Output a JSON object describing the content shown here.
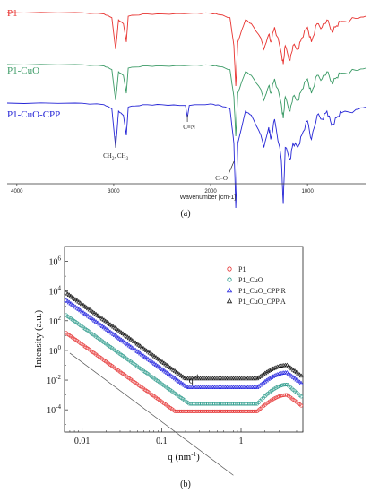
{
  "figure": {
    "panel_a_label": "(a)",
    "panel_b_label": "(b)"
  },
  "chart_data": [
    {
      "type": "line",
      "panel": "a",
      "title": "",
      "xlabel": "Wavenumber [cm-1]",
      "ylabel": "",
      "xlim": [
        4100,
        400
      ],
      "x_ticks": [
        4000,
        3000,
        2000,
        1000
      ],
      "x_tick_labels": [
        "4000",
        "3000",
        "2000",
        "1000"
      ],
      "grid": false,
      "series": [
        {
          "name": "P1",
          "color": "#e8322f",
          "points": [
            [
              4100,
              1.0
            ],
            [
              3400,
              1.0
            ],
            [
              3100,
              0.98
            ],
            [
              3020,
              0.93
            ],
            [
              2980,
              0.5
            ],
            [
              2950,
              0.9
            ],
            [
              2900,
              0.85
            ],
            [
              2870,
              0.6
            ],
            [
              2850,
              0.95
            ],
            [
              2700,
              0.98
            ],
            [
              2500,
              0.98
            ],
            [
              2200,
              0.99
            ],
            [
              2000,
              0.99
            ],
            [
              1900,
              0.97
            ],
            [
              1800,
              0.93
            ],
            [
              1760,
              0.55
            ],
            [
              1740,
              0.0
            ],
            [
              1720,
              0.6
            ],
            [
              1640,
              0.9
            ],
            [
              1580,
              0.85
            ],
            [
              1480,
              0.65
            ],
            [
              1450,
              0.5
            ],
            [
              1400,
              0.7
            ],
            [
              1380,
              0.6
            ],
            [
              1340,
              0.8
            ],
            [
              1270,
              0.45
            ],
            [
              1250,
              0.3
            ],
            [
              1230,
              0.55
            ],
            [
              1180,
              0.35
            ],
            [
              1150,
              0.55
            ],
            [
              1100,
              0.5
            ],
            [
              1060,
              0.65
            ],
            [
              1000,
              0.8
            ],
            [
              960,
              0.6
            ],
            [
              900,
              0.85
            ],
            [
              850,
              0.8
            ],
            [
              800,
              0.9
            ],
            [
              750,
              0.75
            ],
            [
              700,
              0.82
            ],
            [
              650,
              0.88
            ],
            [
              500,
              0.92
            ],
            [
              400,
              0.95
            ]
          ]
        },
        {
          "name": "P1-CuO",
          "color": "#3a9a65",
          "points": [
            [
              4100,
              1.0
            ],
            [
              3400,
              1.0
            ],
            [
              3100,
              0.98
            ],
            [
              3020,
              0.93
            ],
            [
              2980,
              0.5
            ],
            [
              2950,
              0.9
            ],
            [
              2900,
              0.85
            ],
            [
              2870,
              0.6
            ],
            [
              2850,
              0.95
            ],
            [
              2700,
              0.98
            ],
            [
              2500,
              0.98
            ],
            [
              2200,
              0.99
            ],
            [
              2000,
              0.99
            ],
            [
              1900,
              0.97
            ],
            [
              1800,
              0.93
            ],
            [
              1760,
              0.55
            ],
            [
              1740,
              0.0
            ],
            [
              1720,
              0.6
            ],
            [
              1640,
              0.9
            ],
            [
              1580,
              0.85
            ],
            [
              1480,
              0.65
            ],
            [
              1450,
              0.5
            ],
            [
              1400,
              0.7
            ],
            [
              1380,
              0.6
            ],
            [
              1340,
              0.8
            ],
            [
              1270,
              0.45
            ],
            [
              1250,
              0.25
            ],
            [
              1230,
              0.55
            ],
            [
              1180,
              0.35
            ],
            [
              1150,
              0.55
            ],
            [
              1100,
              0.5
            ],
            [
              1060,
              0.65
            ],
            [
              1000,
              0.8
            ],
            [
              960,
              0.6
            ],
            [
              900,
              0.85
            ],
            [
              850,
              0.8
            ],
            [
              800,
              0.9
            ],
            [
              750,
              0.75
            ],
            [
              700,
              0.82
            ],
            [
              650,
              0.88
            ],
            [
              500,
              0.92
            ],
            [
              400,
              0.95
            ]
          ]
        },
        {
          "name": "P1-CuO-CPP",
          "color": "#2424d6",
          "points": [
            [
              4100,
              1.0
            ],
            [
              3400,
              1.0
            ],
            [
              3100,
              0.98
            ],
            [
              3020,
              0.93
            ],
            [
              2980,
              0.45
            ],
            [
              2950,
              0.9
            ],
            [
              2900,
              0.85
            ],
            [
              2870,
              0.6
            ],
            [
              2850,
              0.95
            ],
            [
              2700,
              0.98
            ],
            [
              2500,
              0.98
            ],
            [
              2260,
              0.97
            ],
            [
              2240,
              0.82
            ],
            [
              2220,
              0.97
            ],
            [
              2000,
              0.99
            ],
            [
              1900,
              0.97
            ],
            [
              1800,
              0.93
            ],
            [
              1760,
              0.5
            ],
            [
              1740,
              -0.3
            ],
            [
              1720,
              0.5
            ],
            [
              1640,
              0.9
            ],
            [
              1580,
              0.85
            ],
            [
              1480,
              0.6
            ],
            [
              1450,
              0.45
            ],
            [
              1400,
              0.7
            ],
            [
              1380,
              0.55
            ],
            [
              1340,
              0.8
            ],
            [
              1270,
              0.3
            ],
            [
              1250,
              -0.25
            ],
            [
              1230,
              0.45
            ],
            [
              1180,
              0.3
            ],
            [
              1150,
              0.5
            ],
            [
              1100,
              0.45
            ],
            [
              1060,
              0.6
            ],
            [
              1000,
              0.78
            ],
            [
              960,
              0.55
            ],
            [
              900,
              0.85
            ],
            [
              850,
              0.8
            ],
            [
              800,
              0.9
            ],
            [
              750,
              0.72
            ],
            [
              700,
              0.82
            ],
            [
              650,
              0.88
            ],
            [
              500,
              0.92
            ],
            [
              400,
              0.95
            ]
          ]
        }
      ],
      "annotations": [
        {
          "text": "CH",
          "sub1": "2",
          "text2": ", CH",
          "sub2": "3",
          "x": 2980
        },
        {
          "text": "C≡N",
          "x": 2240
        },
        {
          "text": "C=O",
          "x": 1740
        }
      ]
    },
    {
      "type": "scatter",
      "panel": "b",
      "title": "",
      "xlabel": "q (nm",
      "xlabel_sup": "-1",
      "xlabel_end": ")",
      "ylabel": "Intensity (a.u.)",
      "xscale": "log",
      "yscale": "log",
      "xlim": [
        0.006,
        6
      ],
      "ylim_exp": [
        -5.5,
        7
      ],
      "x_ticks": [
        0.01,
        0.1,
        1
      ],
      "x_tick_labels": [
        "0.01",
        "0.1",
        "1"
      ],
      "y_tick_exponents": [
        -4,
        -2,
        0,
        2,
        4,
        6
      ],
      "y_tick_base": "10",
      "grid": false,
      "legend_position": "top-right",
      "series": [
        {
          "name": "P1",
          "color": "#e53030",
          "marker": "circle",
          "a": 0.4,
          "minq": 1.6,
          "minlog": -4.1,
          "peakq": 3.8,
          "peaklog": -3.0,
          "endlog": -3.8
        },
        {
          "name": "P1_CuO",
          "color": "#2a9a8a",
          "marker": "circle",
          "a": 1.6,
          "minq": 1.6,
          "minlog": -3.6,
          "peakq": 3.8,
          "peaklog": -2.3,
          "endlog": -3.2
        },
        {
          "name": "P1_CuO_CPP R",
          "color": "#2525e0",
          "marker": "triangle",
          "a": 2.6,
          "minq": 1.6,
          "minlog": -2.5,
          "peakq": 3.8,
          "peaklog": -1.5,
          "endlog": -2.3
        },
        {
          "name": "P1_CuO_CPP A",
          "color": "#111111",
          "marker": "triangle",
          "a": 3.1,
          "minq": 1.6,
          "minlog": -1.9,
          "peakq": 3.8,
          "peaklog": -1.0,
          "endlog": -1.8
        }
      ],
      "guide_line": {
        "label": "q",
        "label_sup": "-4",
        "slope": -4,
        "a": -0.8,
        "q_range": [
          0.007,
          0.8
        ]
      }
    }
  ]
}
